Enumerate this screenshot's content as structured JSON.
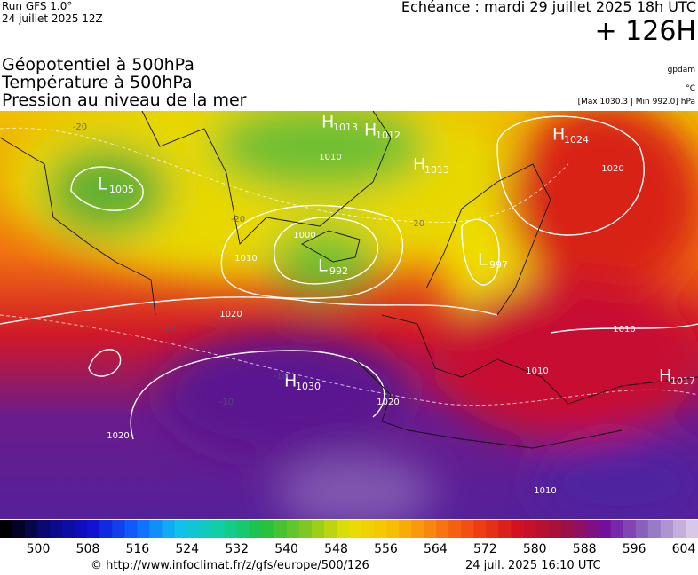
{
  "header": {
    "run": "Run GFS 1.0°",
    "run_date": "24 juillet 2025 12Z",
    "forecast": "Echéance : mardi 29 juillet 2025 18h UTC",
    "lead": "+ 126H"
  },
  "fields": [
    "Géopotentiel à 500hPa",
    "Température à 500hPa",
    "Pression au niveau de la mer"
  ],
  "units": {
    "geopotential": "gpdam",
    "temperature": "°C",
    "pressure_range": "[Max 1030.3 | Min 992.0] hPa"
  },
  "centers": [
    {
      "type": "H",
      "value": 1013
    },
    {
      "type": "H",
      "value": 1012
    },
    {
      "type": "L",
      "value": 1005
    },
    {
      "type": "H",
      "value": 1013
    },
    {
      "type": "L",
      "value": 992
    },
    {
      "type": "L",
      "value": 997
    },
    {
      "type": "H",
      "value": 1024
    },
    {
      "type": "H",
      "value": 1030
    },
    {
      "type": "H",
      "value": 1017
    }
  ],
  "isobar_labels": [
    1010,
    1000,
    1010,
    1020,
    1020,
    1020,
    1010,
    1010,
    1010,
    1020
  ],
  "temperature_labels": [
    -20,
    -20,
    -20,
    -10,
    -10,
    -10
  ],
  "colorbar": {
    "labels": [
      500,
      508,
      516,
      524,
      532,
      540,
      548,
      556,
      564,
      572,
      580,
      588,
      596,
      604
    ]
  },
  "footer": {
    "url": "© http://www.infoclimat.fr/z/gfs/europe/500/126",
    "timestamp": "24 juil. 2025 16:10 UTC"
  }
}
